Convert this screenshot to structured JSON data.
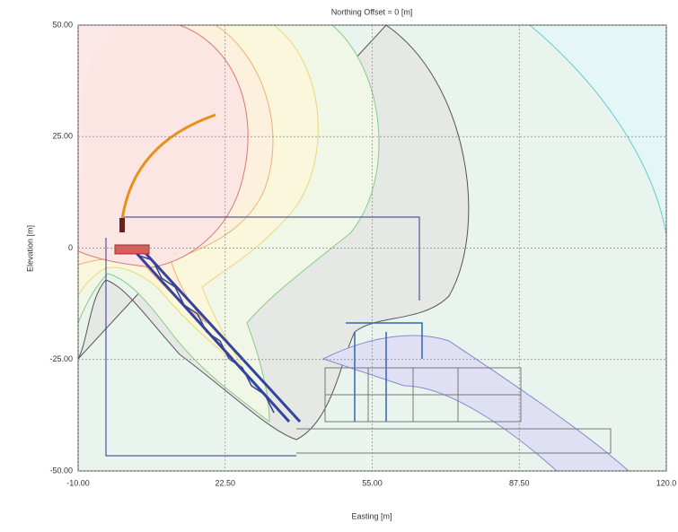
{
  "chart_data": {
    "type": "contour",
    "title": "Northing Offset = 0 [m]",
    "xlabel": "Easting [m]",
    "ylabel": "Elevation [m]",
    "xlim": [
      -10,
      120
    ],
    "ylim": [
      -50,
      50
    ],
    "xticks": [
      {
        "value": -10,
        "label": "-10.00"
      },
      {
        "value": 22.5,
        "label": "22.50"
      },
      {
        "value": 55,
        "label": "55.00"
      },
      {
        "value": 87.5,
        "label": "87.50"
      },
      {
        "value": 120,
        "label": "120.0"
      }
    ],
    "yticks": [
      {
        "value": -50,
        "label": "-50.00"
      },
      {
        "value": -25,
        "label": "-25.00"
      },
      0,
      {
        "value": 25,
        "label": "25.00"
      },
      {
        "value": 50,
        "label": "50.00"
      }
    ],
    "grid": true
  }
}
